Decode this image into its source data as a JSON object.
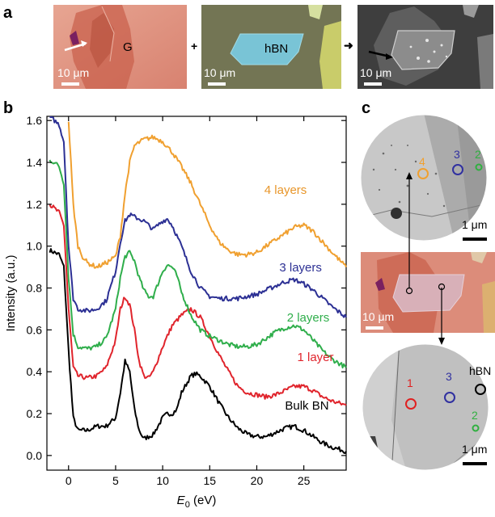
{
  "panel_a": {
    "letter": "a",
    "images": [
      {
        "label": "G",
        "scale": "10 μm"
      },
      {
        "label": "hBN",
        "scale": "10 μm"
      },
      {
        "scale": "10 μm"
      }
    ],
    "plus": "+",
    "arrow": "➜"
  },
  "panel_b": {
    "letter": "b"
  },
  "panel_c": {
    "letter": "c",
    "top_image": {
      "scale": "1 μm",
      "markers": [
        {
          "label": "4",
          "color": "#f0a030"
        },
        {
          "label": "3",
          "color": "#3030a0"
        },
        {
          "label": "2",
          "color": "#30b040"
        }
      ]
    },
    "middle_image": {
      "scale": "10 μm"
    },
    "bottom_image": {
      "scale": "1 μm",
      "markers": [
        {
          "label": "1",
          "color": "#e02020"
        },
        {
          "label": "3",
          "color": "#3030a0"
        },
        {
          "label": "hBN",
          "color": "#000000"
        },
        {
          "label": "2",
          "color": "#30b040"
        }
      ]
    }
  },
  "chart_data": {
    "type": "line",
    "xlabel_italic": "E",
    "xlabel_sub": "0",
    "xlabel_rest": " (eV)",
    "ylabel": "Intensity (a.u.)",
    "xlim": [
      -2.3,
      29.5
    ],
    "ylim": [
      -0.07,
      1.62
    ],
    "xticks": [
      0,
      5,
      10,
      15,
      20,
      25
    ],
    "yticks": [
      0.0,
      0.2,
      0.4,
      0.6,
      0.8,
      1.0,
      1.2,
      1.4,
      1.6
    ],
    "ytick_labels": [
      "0.0",
      "0.2",
      "0.4",
      "0.6",
      "0.8",
      "1.0",
      "1.2",
      "1.4",
      "1.6"
    ],
    "series": [
      {
        "name": "Bulk BN",
        "color": "#000000",
        "x": [
          -2,
          -1.5,
          -1,
          -0.5,
          0,
          0.5,
          1,
          2,
          3,
          4,
          5,
          5.5,
          6,
          6.5,
          7,
          7.5,
          8,
          9,
          10,
          10.5,
          11,
          11.5,
          12,
          13,
          13.5,
          14,
          15,
          16,
          17,
          18,
          19,
          20,
          21,
          22,
          23,
          24,
          25,
          26,
          27,
          28,
          29.5
        ],
        "y": [
          0.98,
          0.97,
          0.96,
          0.9,
          0.5,
          0.18,
          0.12,
          0.12,
          0.14,
          0.14,
          0.18,
          0.3,
          0.45,
          0.4,
          0.22,
          0.12,
          0.08,
          0.1,
          0.18,
          0.2,
          0.2,
          0.22,
          0.3,
          0.38,
          0.39,
          0.38,
          0.33,
          0.25,
          0.18,
          0.13,
          0.1,
          0.09,
          0.09,
          0.11,
          0.13,
          0.14,
          0.12,
          0.09,
          0.06,
          0.04,
          0.02
        ]
      },
      {
        "name": "1 layer",
        "color": "#e0242c",
        "x": [
          -2,
          -1.5,
          -1,
          -0.5,
          0,
          0.5,
          1,
          2,
          3,
          4,
          5,
          5.5,
          6,
          6.5,
          7,
          7.5,
          8,
          8.5,
          9,
          10,
          11,
          12,
          13,
          14,
          15,
          16,
          17,
          18,
          19,
          20,
          21,
          22,
          23,
          24,
          25,
          26,
          27,
          28,
          29.5
        ],
        "y": [
          1.2,
          1.18,
          1.16,
          1.1,
          0.7,
          0.42,
          0.38,
          0.37,
          0.38,
          0.42,
          0.55,
          0.7,
          0.76,
          0.72,
          0.6,
          0.45,
          0.38,
          0.37,
          0.4,
          0.52,
          0.62,
          0.67,
          0.7,
          0.66,
          0.57,
          0.48,
          0.4,
          0.33,
          0.3,
          0.29,
          0.28,
          0.29,
          0.31,
          0.33,
          0.33,
          0.31,
          0.28,
          0.26,
          0.24
        ]
      },
      {
        "name": "2 layers",
        "color": "#2fae4b",
        "x": [
          -2,
          -1.5,
          -1,
          -0.5,
          0,
          0.5,
          1,
          2,
          3,
          4,
          5,
          5.5,
          6,
          6.5,
          7,
          7.5,
          8,
          8.5,
          9,
          9.5,
          10,
          10.5,
          11,
          11.5,
          12,
          13,
          14,
          15,
          16,
          17,
          18,
          19,
          20,
          21,
          22,
          23,
          24,
          25,
          26,
          27,
          28,
          29.5
        ],
        "y": [
          1.41,
          1.4,
          1.38,
          1.3,
          0.85,
          0.58,
          0.52,
          0.51,
          0.52,
          0.56,
          0.7,
          0.85,
          0.95,
          0.97,
          0.93,
          0.85,
          0.79,
          0.76,
          0.76,
          0.82,
          0.88,
          0.91,
          0.9,
          0.86,
          0.78,
          0.67,
          0.6,
          0.57,
          0.55,
          0.53,
          0.52,
          0.52,
          0.53,
          0.56,
          0.59,
          0.61,
          0.62,
          0.6,
          0.55,
          0.5,
          0.46,
          0.42
        ]
      },
      {
        "name": "3 layers",
        "color": "#2c3094",
        "x": [
          -2,
          -1.5,
          -1,
          -0.5,
          0,
          0.5,
          1,
          2,
          3,
          4,
          5,
          5.5,
          6,
          6.5,
          7,
          8,
          9,
          10,
          10.5,
          11,
          12,
          13,
          14,
          15,
          16,
          17,
          18,
          19,
          20,
          21,
          22,
          23,
          24,
          25,
          26,
          27,
          28,
          29.5
        ],
        "y": [
          1.62,
          1.6,
          1.58,
          1.5,
          1.0,
          0.75,
          0.7,
          0.69,
          0.7,
          0.74,
          0.88,
          1.02,
          1.12,
          1.15,
          1.14,
          1.12,
          1.08,
          1.12,
          1.13,
          1.1,
          1.0,
          0.88,
          0.8,
          0.76,
          0.75,
          0.75,
          0.75,
          0.76,
          0.77,
          0.79,
          0.81,
          0.83,
          0.84,
          0.82,
          0.79,
          0.75,
          0.71,
          0.66
        ]
      },
      {
        "name": "4 layers",
        "color": "#f0a030",
        "x": [
          0,
          0.5,
          1,
          1.5,
          2,
          3,
          4,
          5,
          5.5,
          6,
          6.5,
          7,
          8,
          9,
          10,
          11,
          12,
          13,
          14,
          15,
          16,
          17,
          18,
          19,
          20,
          21,
          22,
          23,
          24,
          25,
          26,
          27,
          28,
          29.5
        ],
        "y": [
          1.6,
          1.2,
          1.0,
          0.95,
          0.92,
          0.9,
          0.92,
          0.95,
          1.05,
          1.25,
          1.4,
          1.48,
          1.51,
          1.52,
          1.5,
          1.45,
          1.38,
          1.3,
          1.2,
          1.1,
          1.02,
          0.98,
          0.96,
          0.96,
          0.97,
          1.0,
          1.03,
          1.06,
          1.09,
          1.1,
          1.07,
          1.02,
          0.97,
          0.9
        ]
      }
    ],
    "annotations": [
      {
        "text": "4 layers",
        "color": "#e8962a",
        "x": 20.8,
        "y": 1.25
      },
      {
        "text": "3 layers",
        "color": "#2c3094",
        "x": 22.4,
        "y": 0.88
      },
      {
        "text": "2 layers",
        "color": "#2fae4b",
        "x": 23.2,
        "y": 0.64
      },
      {
        "text": "1 layer",
        "color": "#e0242c",
        "x": 24.3,
        "y": 0.45
      },
      {
        "text": "Bulk BN",
        "color": "#000000",
        "x": 23.0,
        "y": 0.22
      }
    ]
  }
}
